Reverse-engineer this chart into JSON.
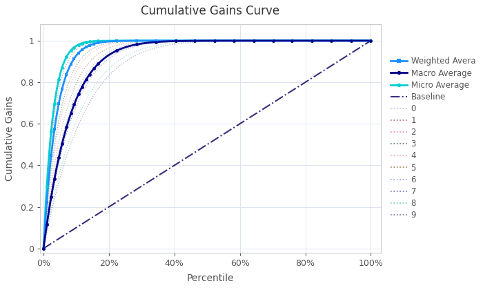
{
  "title": "Cumulative Gains Curve",
  "xlabel": "Percentile",
  "ylabel": "Cumulative Gains",
  "background_color": "#ffffff",
  "plot_bg_color": "#ffffff",
  "grid_color": "#dce4f0",
  "weighted_avg_color": "#1E90FF",
  "macro_avg_color": "#00008B",
  "micro_avg_color": "#00CED1",
  "baseline_color": "#3b2d7a",
  "class_colors": [
    "#c8b8e8",
    "#b06080",
    "#e080b0",
    "#507868",
    "#e8a898",
    "#a07848",
    "#88aadd",
    "#6070b8",
    "#70c8c8",
    "#7070a0"
  ],
  "xticks": [
    0.0,
    0.2,
    0.4,
    0.6,
    0.8,
    1.0
  ],
  "xlim": [
    -0.01,
    1.03
  ],
  "ylim": [
    -0.02,
    1.08
  ],
  "yticks": [
    0,
    0.2,
    0.4,
    0.6,
    0.8,
    1.0
  ],
  "yticklabels": [
    "0",
    "0.2",
    "0.4",
    "0.6",
    "0.8",
    "1"
  ],
  "weighted_power": 25.0,
  "macro_power": 12.0,
  "micro_power": 35.0,
  "class_powers": [
    35.0,
    30.0,
    25.0,
    20.0,
    18.0,
    15.0,
    13.0,
    11.0,
    9.0,
    8.0
  ]
}
